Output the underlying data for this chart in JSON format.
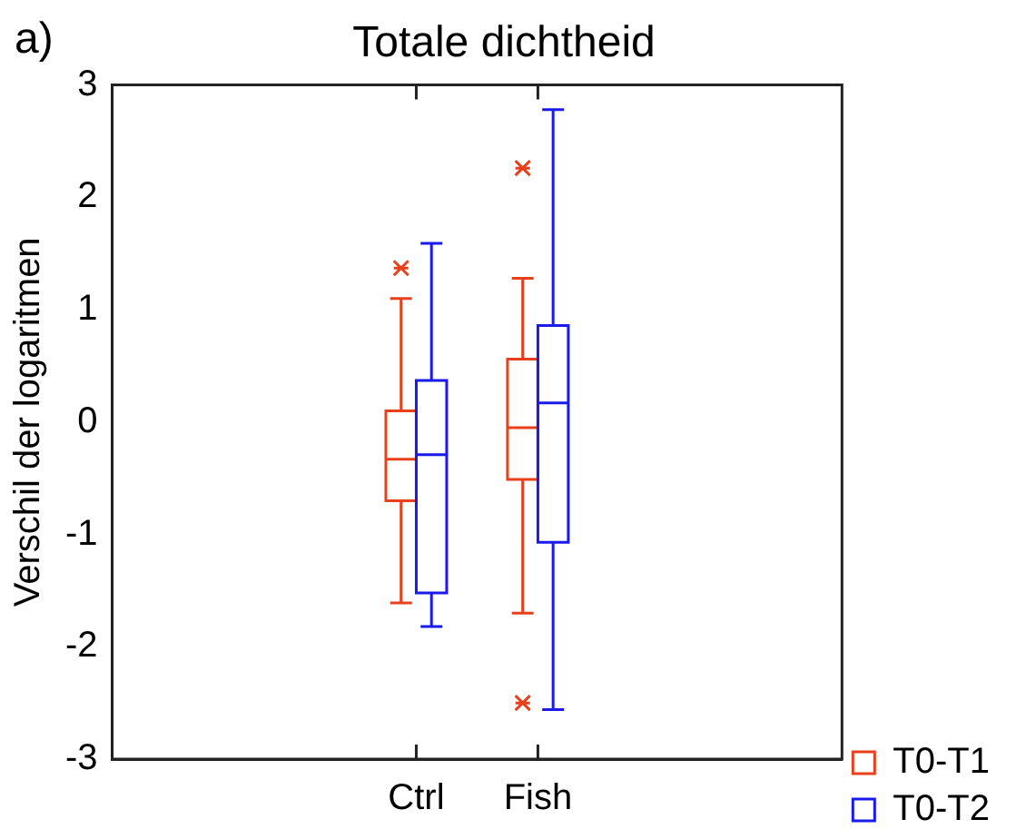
{
  "chart_data": {
    "type": "box",
    "title": "Totale dichtheid",
    "ylabel": "Verschil der logaritmen",
    "annotations": [
      "a)"
    ],
    "categories": [
      "Ctrl",
      "Fish"
    ],
    "ylim": [
      -3,
      3
    ],
    "yticks": [
      -3,
      -2,
      -1,
      0,
      1,
      2,
      3
    ],
    "grid": false,
    "legend": "bottom right",
    "marker": "cross",
    "series": [
      {
        "name": "T0-T1",
        "color": "#e8401c",
        "boxes": [
          {
            "low": -1.61,
            "q1": -0.7,
            "median": -0.33,
            "q3": 0.1,
            "high": 1.1,
            "outliers": [
              1.37
            ]
          },
          {
            "low": -1.7,
            "q1": -0.51,
            "median": -0.05,
            "q3": 0.56,
            "high": 1.28,
            "outliers": [
              2.26,
              -2.5
            ]
          }
        ]
      },
      {
        "name": "T0-T2",
        "color": "#1a1aeb",
        "boxes": [
          {
            "low": -1.82,
            "q1": -1.52,
            "median": -0.29,
            "q3": 0.37,
            "high": 1.59
          },
          {
            "low": -2.56,
            "q1": -1.07,
            "median": 0.17,
            "q3": 0.86,
            "high": 2.78
          }
        ]
      }
    ]
  }
}
